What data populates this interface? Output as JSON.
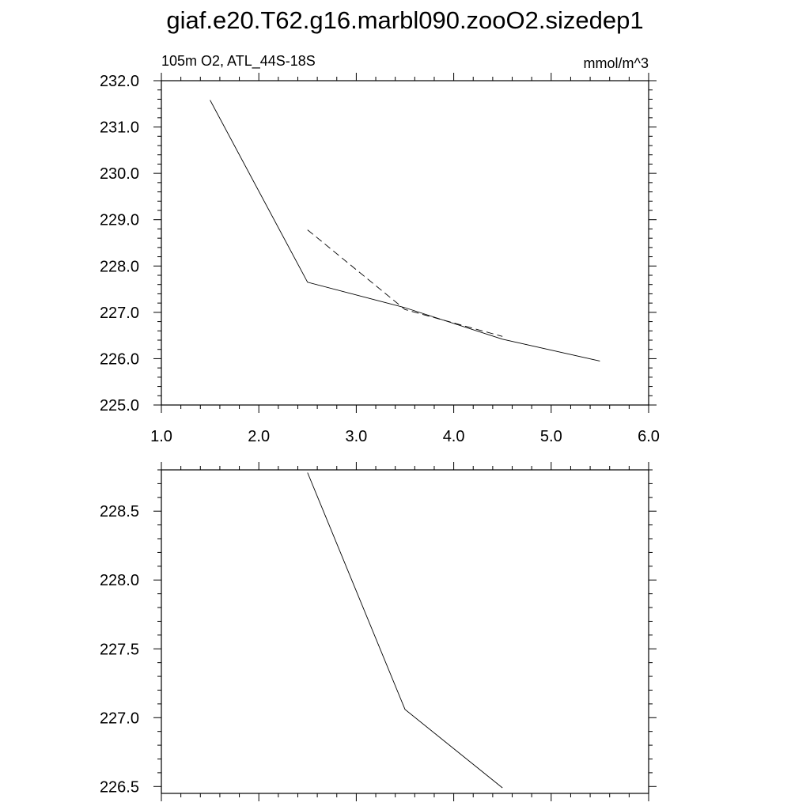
{
  "title": "giaf.e20.T62.g16.marbl090.zooO2.sizedep1",
  "chart_data": [
    {
      "type": "line",
      "left_label": "105m O2, ATL_44S-18S",
      "right_label": "mmol/m^3",
      "xlim": [
        1.0,
        6.0
      ],
      "ylim": [
        225.0,
        232.0
      ],
      "xticks": [
        "1.0",
        "2.0",
        "3.0",
        "4.0",
        "5.0",
        "6.0"
      ],
      "yticks": [
        "225.0",
        "226.0",
        "227.0",
        "228.0",
        "229.0",
        "230.0",
        "231.0",
        "232.0"
      ],
      "series": [
        {
          "style": "solid",
          "x": [
            1.5,
            2.5,
            3.5,
            4.5,
            5.5
          ],
          "y": [
            231.58,
            227.65,
            227.1,
            226.42,
            225.95
          ]
        },
        {
          "style": "dashed",
          "x": [
            2.5,
            3.5,
            4.5
          ],
          "y": [
            228.78,
            227.06,
            226.48
          ]
        }
      ]
    },
    {
      "type": "line",
      "xlim": [
        1.0,
        6.0
      ],
      "ylim": [
        226.45,
        228.8
      ],
      "yticks": [
        "226.5",
        "227.0",
        "227.5",
        "228.0",
        "228.5"
      ],
      "series": [
        {
          "style": "solid",
          "x": [
            2.5,
            3.5,
            4.5
          ],
          "y": [
            228.78,
            227.06,
            226.49
          ]
        }
      ]
    }
  ]
}
